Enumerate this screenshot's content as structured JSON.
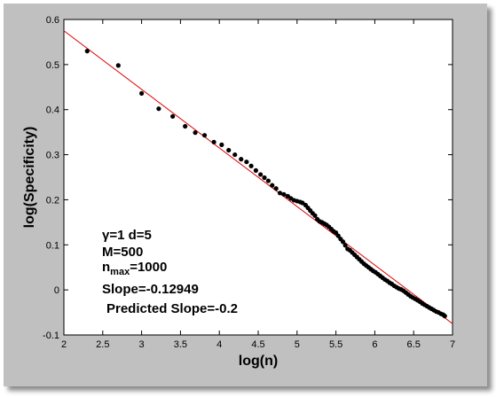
{
  "chart_data": {
    "type": "scatter",
    "xlabel": "log(n)",
    "ylabel": "log(Specificity)",
    "xlim": [
      2,
      7
    ],
    "ylim": [
      -0.1,
      0.6
    ],
    "xticks": [
      "2",
      "2.5",
      "3",
      "3.5",
      "4",
      "4.5",
      "5",
      "5.5",
      "6",
      "6.5",
      "7"
    ],
    "yticks": [
      "-0.1",
      "0",
      "0.1",
      "0.2",
      "0.3",
      "0.4",
      "0.5",
      "0.6"
    ],
    "grid": false,
    "series": [
      {
        "kind": "points",
        "color": "#000000",
        "points": [
          [
            2.3,
            0.53
          ],
          [
            2.7,
            0.498
          ],
          [
            3.0,
            0.436
          ],
          [
            3.22,
            0.402
          ],
          [
            3.4,
            0.385
          ],
          [
            3.56,
            0.363
          ],
          [
            3.69,
            0.349
          ],
          [
            3.81,
            0.343
          ],
          [
            3.93,
            0.328
          ],
          [
            4.03,
            0.322
          ],
          [
            4.12,
            0.31
          ],
          [
            4.2,
            0.3
          ],
          [
            4.28,
            0.29
          ],
          [
            4.35,
            0.284
          ],
          [
            4.41,
            0.275
          ],
          [
            4.47,
            0.265
          ],
          [
            4.53,
            0.256
          ],
          [
            4.58,
            0.249
          ],
          [
            4.63,
            0.242
          ],
          [
            4.68,
            0.232
          ],
          [
            4.73,
            0.225
          ],
          [
            4.78,
            0.215
          ],
          [
            4.83,
            0.212
          ],
          [
            4.88,
            0.208
          ],
          [
            4.92,
            0.203
          ],
          [
            4.96,
            0.199
          ],
          [
            5.0,
            0.197
          ],
          [
            5.04,
            0.195
          ],
          [
            5.07,
            0.193
          ],
          [
            5.11,
            0.188
          ],
          [
            5.14,
            0.182
          ],
          [
            5.17,
            0.176
          ],
          [
            5.2,
            0.17
          ],
          [
            5.23,
            0.165
          ],
          [
            5.26,
            0.157
          ],
          [
            5.29,
            0.152
          ],
          [
            5.32,
            0.15
          ],
          [
            5.35,
            0.147
          ],
          [
            5.38,
            0.144
          ],
          [
            5.41,
            0.14
          ],
          [
            5.44,
            0.135
          ],
          [
            5.47,
            0.13
          ],
          [
            5.5,
            0.127
          ],
          [
            5.53,
            0.12
          ],
          [
            5.56,
            0.113
          ],
          [
            5.59,
            0.107
          ],
          [
            5.62,
            0.099
          ],
          [
            5.65,
            0.091
          ],
          [
            5.68,
            0.088
          ],
          [
            5.71,
            0.083
          ],
          [
            5.74,
            0.078
          ],
          [
            5.77,
            0.073
          ],
          [
            5.8,
            0.068
          ],
          [
            5.83,
            0.063
          ],
          [
            5.86,
            0.058
          ],
          [
            5.89,
            0.054
          ],
          [
            5.92,
            0.05
          ],
          [
            5.95,
            0.046
          ],
          [
            5.98,
            0.042
          ],
          [
            6.01,
            0.039
          ],
          [
            6.04,
            0.035
          ],
          [
            6.07,
            0.031
          ],
          [
            6.1,
            0.027
          ],
          [
            6.13,
            0.023
          ],
          [
            6.16,
            0.02
          ],
          [
            6.19,
            0.016
          ],
          [
            6.22,
            0.013
          ],
          [
            6.25,
            0.009
          ],
          [
            6.28,
            0.006
          ],
          [
            6.31,
            0.003
          ],
          [
            6.34,
            0.001
          ],
          [
            6.37,
            -0.002
          ],
          [
            6.4,
            -0.006
          ],
          [
            6.43,
            -0.01
          ],
          [
            6.46,
            -0.014
          ],
          [
            6.49,
            -0.017
          ],
          [
            6.52,
            -0.02
          ],
          [
            6.55,
            -0.023
          ],
          [
            6.58,
            -0.026
          ],
          [
            6.61,
            -0.03
          ],
          [
            6.64,
            -0.033
          ],
          [
            6.67,
            -0.036
          ],
          [
            6.7,
            -0.039
          ],
          [
            6.73,
            -0.042
          ],
          [
            6.76,
            -0.045
          ],
          [
            6.79,
            -0.048
          ],
          [
            6.82,
            -0.05
          ],
          [
            6.85,
            -0.053
          ],
          [
            6.88,
            -0.055
          ],
          [
            6.9,
            -0.058
          ]
        ]
      },
      {
        "kind": "fit-line",
        "color": "#e00000",
        "points": [
          [
            2.0,
            0.575
          ],
          [
            7.0,
            -0.075
          ]
        ]
      }
    ],
    "annotations": [
      {
        "id": "gamma_d",
        "text": "γ=1 d=5"
      },
      {
        "id": "m",
        "text": "M=500"
      },
      {
        "id": "nmax",
        "text": "n",
        "sub": "max",
        "text_after": "=1000"
      },
      {
        "id": "slope",
        "text": "Slope=-0.12949"
      },
      {
        "id": "predicted",
        "text": "Predicted Slope=-0.2"
      }
    ]
  }
}
